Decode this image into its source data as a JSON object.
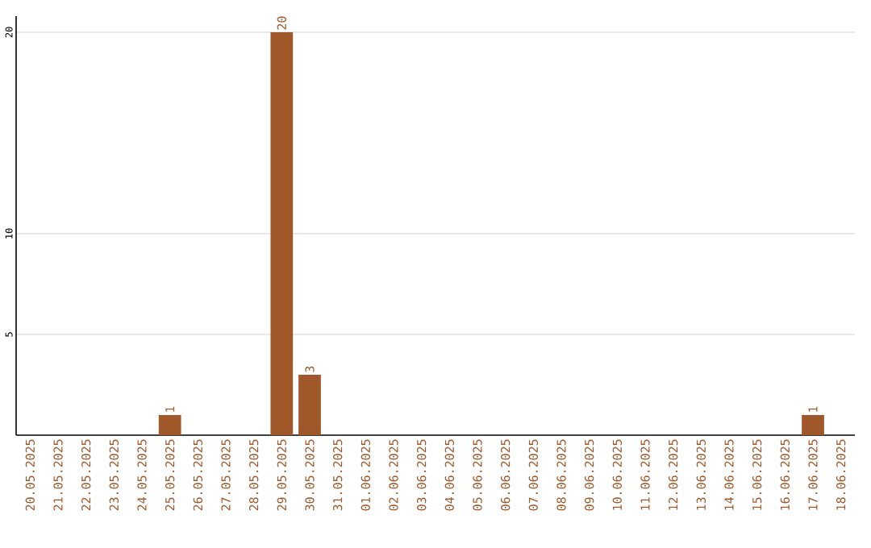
{
  "chart_data": {
    "type": "bar",
    "categories": [
      "20.05.2025",
      "21.05.2025",
      "22.05.2025",
      "23.05.2025",
      "24.05.2025",
      "25.05.2025",
      "26.05.2025",
      "27.05.2025",
      "28.05.2025",
      "29.05.2025",
      "30.05.2025",
      "31.05.2025",
      "01.06.2025",
      "02.06.2025",
      "03.06.2025",
      "04.06.2025",
      "05.06.2025",
      "06.06.2025",
      "07.06.2025",
      "08.06.2025",
      "09.06.2025",
      "10.06.2025",
      "11.06.2025",
      "12.06.2025",
      "13.06.2025",
      "14.06.2025",
      "15.06.2025",
      "16.06.2025",
      "17.06.2025",
      "18.06.2025"
    ],
    "values": [
      0,
      0,
      0,
      0,
      0,
      1,
      0,
      0,
      0,
      20,
      3,
      0,
      0,
      0,
      0,
      0,
      0,
      0,
      0,
      0,
      0,
      0,
      0,
      0,
      0,
      0,
      0,
      0,
      1,
      0
    ],
    "value_labels": [
      null,
      null,
      null,
      null,
      null,
      "1",
      null,
      null,
      null,
      "20",
      "3",
      null,
      null,
      null,
      null,
      null,
      null,
      null,
      null,
      null,
      null,
      null,
      null,
      null,
      null,
      null,
      null,
      null,
      "1",
      null
    ],
    "color": "#a0582a",
    "ylim": [
      0,
      20.8
    ],
    "yticks": [
      5,
      10,
      20
    ],
    "grid": "y"
  }
}
